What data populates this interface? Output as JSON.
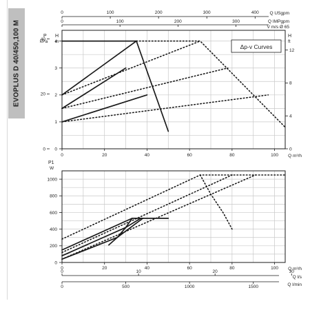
{
  "side_label": "EVOPLUS D 40/450,100 M",
  "colors": {
    "ink": "#1a1a1a",
    "grid": "#c8c8c8",
    "tab": "#bfbfbf"
  },
  "chart_data": [
    {
      "type": "line",
      "title": "",
      "legend_box": "Δp-v Curves",
      "grid": true,
      "x_axis": {
        "label": "Q m³/h",
        "range": [
          0,
          105
        ],
        "ticks": [
          0,
          20,
          40,
          60,
          80,
          100
        ]
      },
      "y_axis_left_primary": {
        "label": "H",
        "unit": "m",
        "range": [
          0,
          4.4
        ],
        "ticks": [
          0,
          1,
          2,
          3,
          4
        ]
      },
      "y_axis_left_secondary": {
        "label": "P",
        "unit": "kPa",
        "ticks": [
          0,
          20,
          40
        ]
      },
      "y_axis_right": {
        "label": "H",
        "unit": "ft",
        "range": [
          0,
          14.4
        ],
        "ticks": [
          0,
          4,
          8,
          12
        ]
      },
      "top_axes": [
        {
          "label": "Q USgpm",
          "ticks": [
            0,
            100,
            200,
            300,
            400
          ]
        },
        {
          "label": "Q IMPgpm",
          "ticks": [
            0,
            100,
            200,
            300
          ]
        },
        {
          "label": "V m/s Ø 65"
        }
      ],
      "series": [
        {
          "style": "solid",
          "x": [
            0,
            35
          ],
          "y": [
            4,
            4
          ]
        },
        {
          "style": "solid",
          "x": [
            0,
            35
          ],
          "y": [
            2,
            4
          ]
        },
        {
          "style": "solid",
          "x": [
            0,
            30
          ],
          "y": [
            1.5,
            3
          ]
        },
        {
          "style": "solid",
          "x": [
            0,
            40
          ],
          "y": [
            1,
            2
          ]
        },
        {
          "style": "solid",
          "x": [
            35,
            50
          ],
          "y": [
            4,
            0.65
          ]
        },
        {
          "style": "dotted",
          "x": [
            35,
            65,
            105
          ],
          "y": [
            4,
            4,
            0.8
          ]
        },
        {
          "style": "dotted",
          "x": [
            0,
            65
          ],
          "y": [
            2,
            4
          ]
        },
        {
          "style": "dotted",
          "x": [
            0,
            78
          ],
          "y": [
            1.5,
            3
          ]
        },
        {
          "style": "dotted",
          "x": [
            0,
            97
          ],
          "y": [
            1,
            2
          ]
        }
      ]
    },
    {
      "type": "line",
      "title": "",
      "grid": true,
      "x_axis": {
        "label": "Q m³/h",
        "range": [
          0,
          105
        ],
        "ticks": [
          0,
          20,
          40,
          60,
          80,
          100
        ]
      },
      "y_axis": {
        "label": "P1",
        "unit": "W",
        "range": [
          0,
          1100
        ],
        "ticks": [
          0,
          200,
          400,
          600,
          800,
          1000
        ]
      },
      "bottom_axes": [
        {
          "label": "Q l/s",
          "ticks": [
            0,
            10,
            20,
            30
          ]
        },
        {
          "label": "Q l/min",
          "ticks": [
            0,
            500,
            1000,
            1500
          ]
        }
      ],
      "series": [
        {
          "style": "solid",
          "x": [
            0,
            33,
            50
          ],
          "y": [
            150,
            530,
            530
          ]
        },
        {
          "style": "solid",
          "x": [
            0,
            30,
            37
          ],
          "y": [
            80,
            420,
            530
          ]
        },
        {
          "style": "solid",
          "x": [
            0,
            26,
            38
          ],
          "y": [
            40,
            300,
            530
          ]
        },
        {
          "style": "solid",
          "x": [
            33,
            30,
            26,
            22
          ],
          "y": [
            530,
            420,
            300,
            210
          ]
        },
        {
          "style": "dotted",
          "x": [
            0,
            65,
            105
          ],
          "y": [
            280,
            1050,
            1050
          ]
        },
        {
          "style": "dotted",
          "x": [
            0,
            80
          ],
          "y": [
            120,
            1050
          ]
        },
        {
          "style": "dotted",
          "x": [
            0,
            91
          ],
          "y": [
            40,
            1050
          ]
        },
        {
          "style": "dotted",
          "x": [
            65,
            70,
            76,
            80
          ],
          "y": [
            1050,
            820,
            590,
            400
          ]
        }
      ]
    }
  ],
  "panels": {
    "top": {
      "top_axis_1": {
        "label": "Q USgpm",
        "ticks": [
          "0",
          "100",
          "200",
          "300",
          "400"
        ]
      },
      "top_axis_2": {
        "label": "Q IMPgpm",
        "ticks": [
          "0",
          "100",
          "200",
          "300"
        ]
      },
      "top_axis_3": {
        "label": "V m/s Ø 65"
      },
      "left_p_label": "P",
      "left_p_unit": "kPa",
      "left_h_label": "H",
      "left_h_unit": "m",
      "right_h_label": "H",
      "right_h_unit": "ft",
      "p_ticks": [
        "0",
        "20",
        "40"
      ],
      "h_ticks": [
        "0",
        "1",
        "2",
        "3",
        "4"
      ],
      "ft_ticks": [
        "0",
        "4",
        "8",
        "12"
      ],
      "x_ticks": [
        "0",
        "20",
        "40",
        "60",
        "80",
        "100"
      ],
      "x_label": "Q m³/h",
      "legend_box": "Δp-v Curves"
    },
    "bottom": {
      "y_label": "P1",
      "y_unit": "W",
      "y_ticks": [
        "0",
        "200",
        "400",
        "600",
        "800",
        "1000"
      ],
      "x_ticks": [
        "0",
        "20",
        "40",
        "60",
        "80",
        "100"
      ],
      "x_label": "Q m³/h",
      "ls_label": "Q l/s",
      "ls_ticks": [
        "0",
        "10",
        "20",
        "30"
      ],
      "lmin_label": "Q l/min",
      "lmin_ticks": [
        "0",
        "500",
        "1000",
        "1500"
      ]
    }
  }
}
